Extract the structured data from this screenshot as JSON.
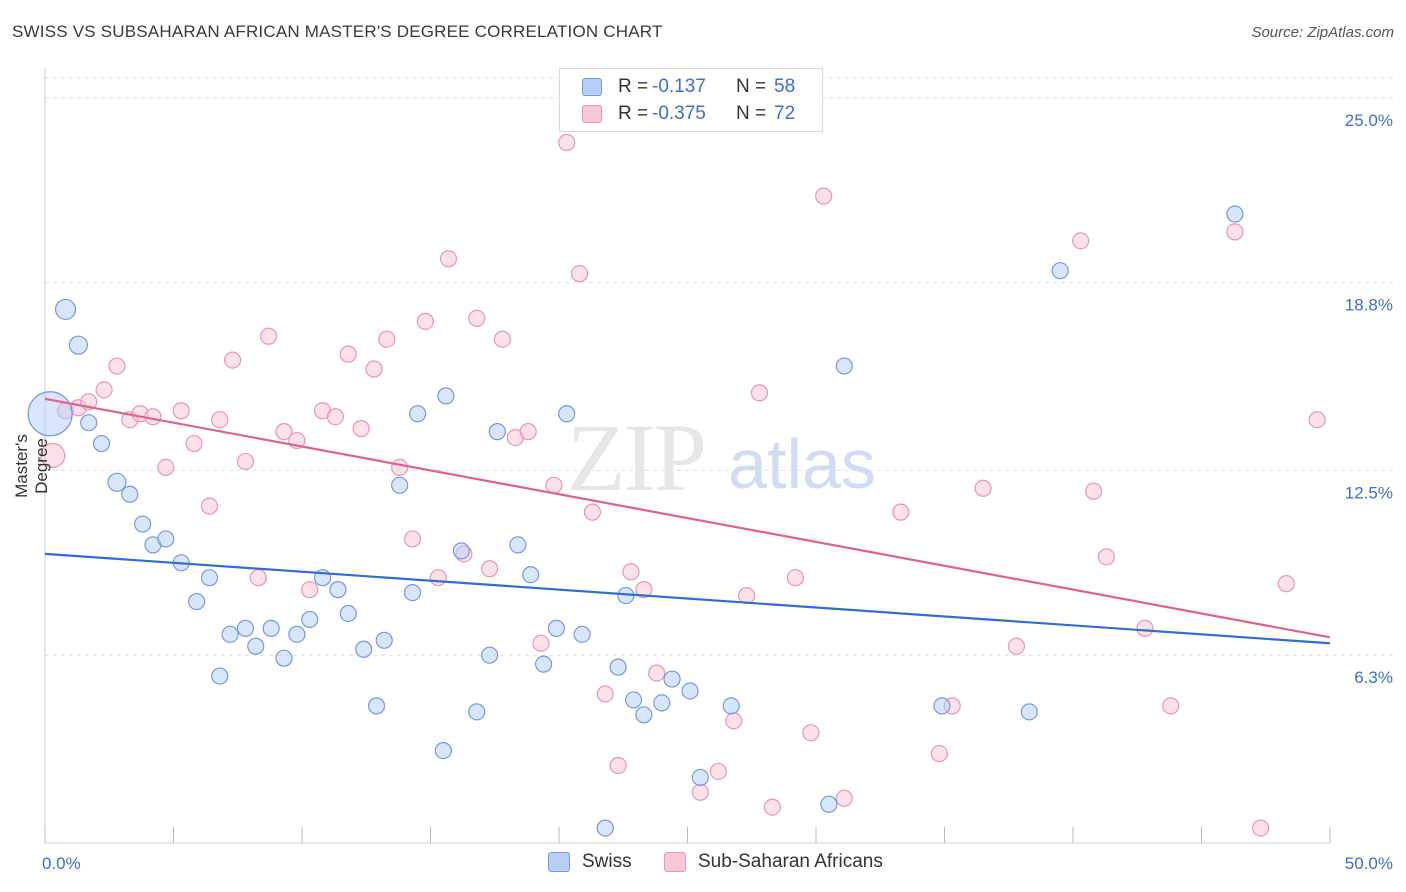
{
  "title": "SWISS VS SUBSAHARAN AFRICAN MASTER'S DEGREE CORRELATION CHART",
  "source": "Source: ZipAtlas.com",
  "watermark": {
    "zip": "ZIP",
    "atlas": "atlas"
  },
  "legend": {
    "swiss": {
      "r_label": "R =",
      "r_value": "-0.137",
      "n_label": "N =",
      "n_value": "58"
    },
    "african": {
      "r_label": "R =",
      "r_value": "-0.375",
      "n_label": "N =",
      "n_value": "72"
    }
  },
  "bottom_legend": {
    "swiss": "Swiss",
    "african": "Sub-Saharan Africans"
  },
  "colors": {
    "swiss_fill": "#b8d0f5",
    "swiss_stroke": "#6f9be3",
    "swiss_line": "#2f6fd0",
    "african_fill": "#f9c8d6",
    "african_stroke": "#ec94b0",
    "african_line": "#e0618f",
    "tick_label": "#3b6fd1",
    "grid": "#dddddd"
  },
  "chart_data": {
    "type": "scatter",
    "title": "SWISS VS SUBSAHARAN AFRICAN MASTER'S DEGREE CORRELATION CHART",
    "xlabel": "",
    "ylabel": "Master's Degree",
    "xlim": [
      0,
      50
    ],
    "ylim": [
      0,
      26.2
    ],
    "x_tick_labels": [
      "0.0%",
      "50.0%"
    ],
    "y_ticks": [
      6.3,
      12.5,
      18.8,
      25.0
    ],
    "y_tick_labels": [
      "6.3%",
      "12.5%",
      "18.8%",
      "25.0%"
    ],
    "grid": true,
    "legend_position": "top-center",
    "series": [
      {
        "name": "Swiss",
        "r": -0.137,
        "n": 58,
        "trend": {
          "x": [
            0,
            50
          ],
          "y": [
            9.7,
            6.7
          ]
        },
        "points": [
          [
            0.2,
            14.4,
            22
          ],
          [
            0.8,
            17.9,
            10
          ],
          [
            1.3,
            16.7,
            9
          ],
          [
            1.7,
            14.1,
            8
          ],
          [
            2.2,
            13.4,
            8
          ],
          [
            2.8,
            12.1,
            9
          ],
          [
            3.3,
            11.7,
            8
          ],
          [
            3.8,
            10.7,
            8
          ],
          [
            4.2,
            10.0,
            8
          ],
          [
            4.7,
            10.2,
            8
          ],
          [
            5.3,
            9.4,
            8
          ],
          [
            5.9,
            8.1,
            8
          ],
          [
            6.4,
            8.9,
            8
          ],
          [
            6.8,
            5.6,
            8
          ],
          [
            7.2,
            7.0,
            8
          ],
          [
            7.8,
            7.2,
            8
          ],
          [
            8.2,
            6.6,
            8
          ],
          [
            8.8,
            7.2,
            8
          ],
          [
            9.3,
            6.2,
            8
          ],
          [
            9.8,
            7.0,
            8
          ],
          [
            10.3,
            7.5,
            8
          ],
          [
            10.8,
            8.9,
            8
          ],
          [
            11.4,
            8.5,
            8
          ],
          [
            11.8,
            7.7,
            8
          ],
          [
            12.4,
            6.5,
            8
          ],
          [
            12.9,
            4.6,
            8
          ],
          [
            13.2,
            6.8,
            8
          ],
          [
            13.8,
            12.0,
            8
          ],
          [
            14.3,
            8.4,
            8
          ],
          [
            14.5,
            14.4,
            8
          ],
          [
            15.5,
            3.1,
            8
          ],
          [
            15.6,
            15.0,
            8
          ],
          [
            16.2,
            9.8,
            8
          ],
          [
            16.8,
            4.4,
            8
          ],
          [
            17.3,
            6.3,
            8
          ],
          [
            17.6,
            13.8,
            8
          ],
          [
            18.4,
            10.0,
            8
          ],
          [
            18.9,
            9.0,
            8
          ],
          [
            19.4,
            6.0,
            8
          ],
          [
            19.9,
            7.2,
            8
          ],
          [
            20.3,
            14.4,
            8
          ],
          [
            20.9,
            7.0,
            8
          ],
          [
            21.8,
            0.5,
            8
          ],
          [
            22.3,
            5.9,
            8
          ],
          [
            22.6,
            8.3,
            8
          ],
          [
            22.9,
            4.8,
            8
          ],
          [
            23.3,
            4.3,
            8
          ],
          [
            24.0,
            4.7,
            8
          ],
          [
            24.4,
            5.5,
            8
          ],
          [
            25.1,
            5.1,
            8
          ],
          [
            25.5,
            2.2,
            8
          ],
          [
            26.7,
            4.6,
            8
          ],
          [
            30.5,
            1.3,
            8
          ],
          [
            31.1,
            16.0,
            8
          ],
          [
            34.9,
            4.6,
            8
          ],
          [
            38.3,
            4.4,
            8
          ],
          [
            39.5,
            19.2,
            8
          ],
          [
            46.3,
            21.1,
            8
          ]
        ]
      },
      {
        "name": "Sub-Saharan Africans",
        "r": -0.375,
        "n": 72,
        "trend": {
          "x": [
            0,
            50
          ],
          "y": [
            14.9,
            6.9
          ]
        },
        "points": [
          [
            0.3,
            13.0,
            12
          ],
          [
            0.8,
            14.5,
            8
          ],
          [
            1.3,
            14.6,
            8
          ],
          [
            1.7,
            14.8,
            8
          ],
          [
            2.3,
            15.2,
            8
          ],
          [
            2.8,
            16.0,
            8
          ],
          [
            3.3,
            14.2,
            8
          ],
          [
            3.7,
            14.4,
            8
          ],
          [
            4.2,
            14.3,
            8
          ],
          [
            4.7,
            12.6,
            8
          ],
          [
            5.3,
            14.5,
            8
          ],
          [
            5.8,
            13.4,
            8
          ],
          [
            6.4,
            11.3,
            8
          ],
          [
            6.8,
            14.2,
            8
          ],
          [
            7.3,
            16.2,
            8
          ],
          [
            7.8,
            12.8,
            8
          ],
          [
            8.3,
            8.9,
            8
          ],
          [
            8.7,
            17.0,
            8
          ],
          [
            9.3,
            13.8,
            8
          ],
          [
            9.8,
            13.5,
            8
          ],
          [
            10.3,
            8.5,
            8
          ],
          [
            10.8,
            14.5,
            8
          ],
          [
            11.3,
            14.3,
            8
          ],
          [
            11.8,
            16.4,
            8
          ],
          [
            12.3,
            13.9,
            8
          ],
          [
            12.8,
            15.9,
            8
          ],
          [
            13.3,
            16.9,
            8
          ],
          [
            13.8,
            12.6,
            8
          ],
          [
            14.3,
            10.2,
            8
          ],
          [
            14.8,
            17.5,
            8
          ],
          [
            15.3,
            8.9,
            8
          ],
          [
            15.7,
            19.6,
            8
          ],
          [
            16.3,
            9.7,
            8
          ],
          [
            16.8,
            17.6,
            8
          ],
          [
            17.3,
            9.2,
            8
          ],
          [
            17.8,
            16.9,
            8
          ],
          [
            18.3,
            13.6,
            8
          ],
          [
            18.8,
            13.8,
            8
          ],
          [
            19.3,
            6.7,
            8
          ],
          [
            19.8,
            12.0,
            8
          ],
          [
            20.3,
            23.5,
            8
          ],
          [
            20.8,
            19.1,
            8
          ],
          [
            21.3,
            11.1,
            8
          ],
          [
            21.8,
            5.0,
            8
          ],
          [
            22.3,
            2.6,
            8
          ],
          [
            22.8,
            9.1,
            8
          ],
          [
            23.3,
            8.5,
            8
          ],
          [
            23.8,
            5.7,
            8
          ],
          [
            25.5,
            1.7,
            8
          ],
          [
            26.2,
            2.4,
            8
          ],
          [
            26.8,
            4.1,
            8
          ],
          [
            27.3,
            8.3,
            8
          ],
          [
            27.8,
            15.1,
            8
          ],
          [
            28.3,
            1.2,
            8
          ],
          [
            29.2,
            8.9,
            8
          ],
          [
            29.8,
            3.7,
            8
          ],
          [
            30.3,
            21.7,
            8
          ],
          [
            31.1,
            1.5,
            8
          ],
          [
            33.3,
            11.1,
            8
          ],
          [
            34.8,
            3.0,
            8
          ],
          [
            35.3,
            4.6,
            8
          ],
          [
            36.5,
            11.9,
            8
          ],
          [
            37.8,
            6.6,
            8
          ],
          [
            40.3,
            20.2,
            8
          ],
          [
            40.8,
            11.8,
            8
          ],
          [
            41.3,
            9.6,
            8
          ],
          [
            42.8,
            7.2,
            8
          ],
          [
            43.8,
            4.6,
            8
          ],
          [
            46.3,
            20.5,
            8
          ],
          [
            47.3,
            0.5,
            8
          ],
          [
            48.3,
            8.7,
            8
          ],
          [
            49.5,
            14.2,
            8
          ]
        ]
      }
    ]
  }
}
